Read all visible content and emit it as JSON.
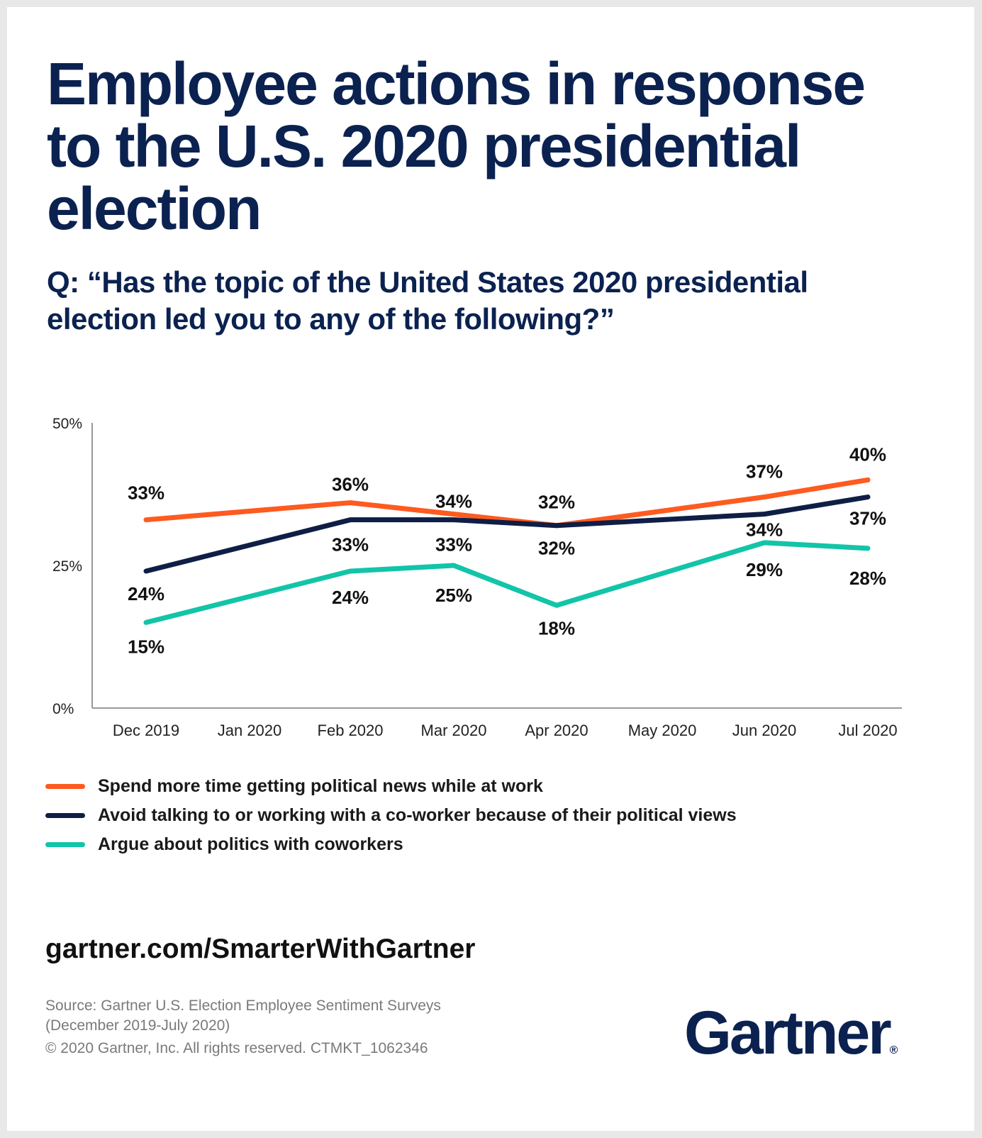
{
  "title": "Employee actions in response to the U.S. 2020 presidential election",
  "question": "Q: “Has the topic of the United States 2020 presidential election led you to any of the following?”",
  "chart_data": {
    "type": "line",
    "categories": [
      "Dec 2019",
      "Jan 2020",
      "Feb 2020",
      "Mar 2020",
      "Apr 2020",
      "May 2020",
      "Jun 2020",
      "Jul 2020"
    ],
    "yticks": [
      "50%",
      "25%",
      "0%"
    ],
    "ylim": [
      0,
      50
    ],
    "grid": false,
    "legend_position": "bottom",
    "series": [
      {
        "name": "Spend more time getting political news while at work",
        "color": "#ff5a1f",
        "x": [
          "Dec 2019",
          "Feb 2020",
          "Mar 2020",
          "Apr 2020",
          "Jun 2020",
          "Jul 2020"
        ],
        "values": [
          33,
          36,
          34,
          32,
          37,
          40
        ],
        "labels": [
          "33%",
          "36%",
          "34%",
          "32%",
          "37%",
          "40%"
        ]
      },
      {
        "name": "Avoid talking to or working with a co-worker because of their political views",
        "color": "#0f1e45",
        "x": [
          "Dec 2019",
          "Feb 2020",
          "Mar 2020",
          "Apr 2020",
          "Jun 2020",
          "Jul 2020"
        ],
        "values": [
          24,
          33,
          33,
          32,
          34,
          37
        ],
        "labels": [
          "24%",
          "33%",
          "33%",
          "32%",
          "34%",
          "37%"
        ]
      },
      {
        "name": "Argue about politics with coworkers",
        "color": "#12c4a8",
        "x": [
          "Dec 2019",
          "Feb 2020",
          "Mar 2020",
          "Apr 2020",
          "Jun 2020",
          "Jul 2020"
        ],
        "values": [
          15,
          24,
          25,
          18,
          29,
          28
        ],
        "labels": [
          "15%",
          "24%",
          "25%",
          "18%",
          "29%",
          "28%"
        ]
      }
    ]
  },
  "url": "gartner.com/SmarterWithGartner",
  "source_line1": "Source: Gartner U.S. Election Employee Sentiment Surveys",
  "source_line2": "(December 2019-July 2020)",
  "copyright": "© 2020 Gartner, Inc. All rights reserved. CTMKT_1062346",
  "logo_text": "Gartner",
  "logo_mark": "®"
}
